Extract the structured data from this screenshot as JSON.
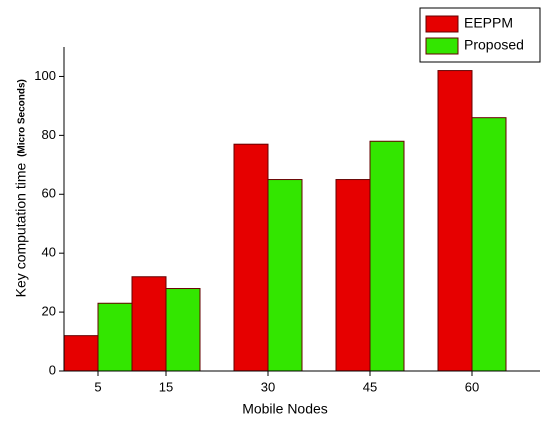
{
  "chart_data": {
    "type": "bar",
    "x_label": "Mobile Nodes",
    "y_label": "Key computation time",
    "y_label_unit": "(Micro Seconds)",
    "x": [
      5,
      15,
      30,
      45,
      60
    ],
    "xticks": [
      5,
      15,
      30,
      45,
      60
    ],
    "xlim": [
      0,
      70
    ],
    "ylim": [
      0,
      110
    ],
    "yticks": [
      0,
      20,
      40,
      60,
      80,
      100
    ],
    "bar_width": 5,
    "legend": "upper right",
    "series": [
      {
        "name": "EEPPM",
        "color": "#e60000",
        "values": [
          12,
          32,
          77,
          65,
          102
        ]
      },
      {
        "name": "Proposed",
        "color": "#33e600",
        "values": [
          23,
          28,
          65,
          78,
          86
        ]
      }
    ]
  }
}
